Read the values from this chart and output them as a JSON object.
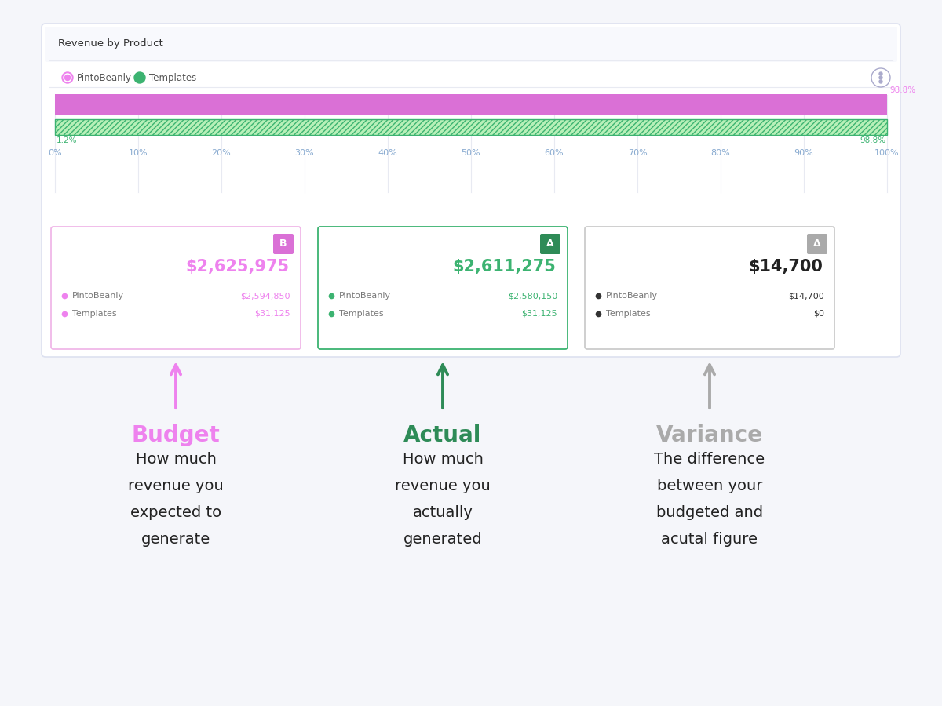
{
  "bg_color": "#f5f6fa",
  "title": "Revenue by Product",
  "legend_items": [
    "PintoBeanly",
    "Templates"
  ],
  "legend_color_pb": "#ee82ee",
  "legend_color_tmpl": "#3cb371",
  "bar1_color": "#da70d6",
  "bar2_fill": "#b8f0b8",
  "bar2_hatch_color": "#3cb371",
  "bar1_pct_label": "98.8%",
  "bar2_left_label": "1.2%",
  "bar2_right_label": "98.8%",
  "x_ticks": [
    "0%",
    "10%",
    "20%",
    "30%",
    "40%",
    "50%",
    "60%",
    "70%",
    "80%",
    "90%",
    "100%"
  ],
  "budget_badge": "B",
  "actual_badge": "A",
  "variance_badge": "Δ",
  "budget_total": "$2,625,975",
  "actual_total": "$2,611,275",
  "variance_total": "$14,700",
  "budget_color": "#ee82ee",
  "actual_color": "#3cb371",
  "variance_color": "#222222",
  "budget_badge_color": "#da70d6",
  "actual_badge_color": "#2e8b57",
  "variance_badge_color": "#aaaaaa",
  "pb_label": "PintoBeanly",
  "tmpl_label": "Templates",
  "pb_budget": "$2,594,850",
  "tmpl_budget": "$31,125",
  "pb_actual": "$2,580,150",
  "tmpl_actual": "$31,125",
  "pb_variance": "$14,700",
  "tmpl_variance": "$0",
  "arrow_budget_color": "#ee82ee",
  "arrow_actual_color": "#2e8b57",
  "arrow_variance_color": "#aaaaaa",
  "label_budget": "Budget",
  "label_actual": "Actual",
  "label_variance": "Variance",
  "desc_budget": "How much\nrevenue you\nexpected to\ngenerate",
  "desc_actual": "How much\nrevenue you\nactually\ngenerated",
  "desc_variance": "The difference\nbetween your\nbudgeted and\nacutal figure",
  "desc_color": "#222222",
  "label_budget_color": "#ee82ee",
  "label_actual_color": "#2e8b57",
  "label_variance_color": "#aaaaaa",
  "card_border": "#dde1f0",
  "budget_card_border": "#f0b8e8",
  "actual_card_border": "#3cb371",
  "variance_card_border": "#cccccc",
  "grid_color": "#e8eaf2",
  "tick_color": "#88aad0"
}
